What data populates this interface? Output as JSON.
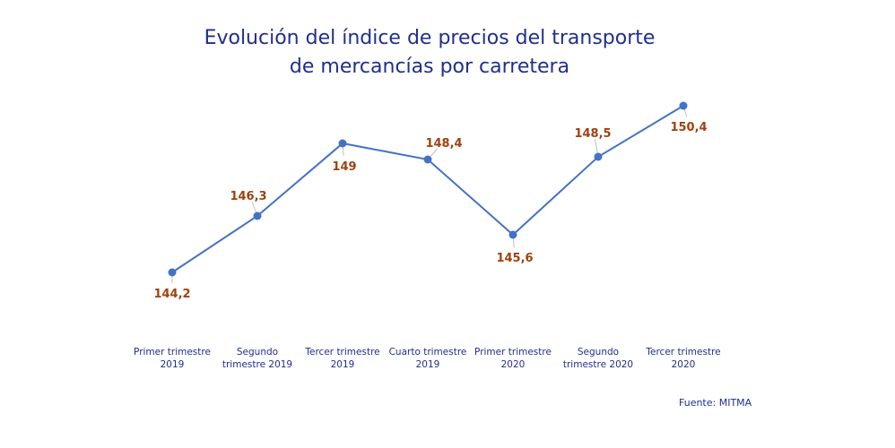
{
  "title_lines": [
    "Evolución del índice de precios del transporte",
    "de mercancías por carretera"
  ],
  "source": "Fuente: MITMA",
  "colors": {
    "line": "#4472c4",
    "labels": "#a0410e",
    "title": "#1f2f8f"
  },
  "chart_data": {
    "type": "line",
    "title": "Evolución del índice de precios del transporte de mercancías por carretera",
    "categories": [
      [
        "Primer trimestre",
        "2019"
      ],
      [
        "Segundo",
        "trimestre 2019"
      ],
      [
        "Tercer trimestre",
        "2019"
      ],
      [
        "Cuarto trimestre",
        "2019"
      ],
      [
        "Primer trimestre",
        "2020"
      ],
      [
        "Segundo",
        "trimestre 2020"
      ],
      [
        "Tercer trimestre",
        "2020"
      ]
    ],
    "values": [
      144.2,
      146.3,
      149,
      148.4,
      145.6,
      148.5,
      150.4
    ],
    "value_labels": [
      "144,2",
      "146,3",
      "149",
      "148,4",
      "145,6",
      "148,5",
      "150,4"
    ],
    "ylim": [
      142.5,
      151.5
    ],
    "grid": false,
    "legend": "none"
  }
}
